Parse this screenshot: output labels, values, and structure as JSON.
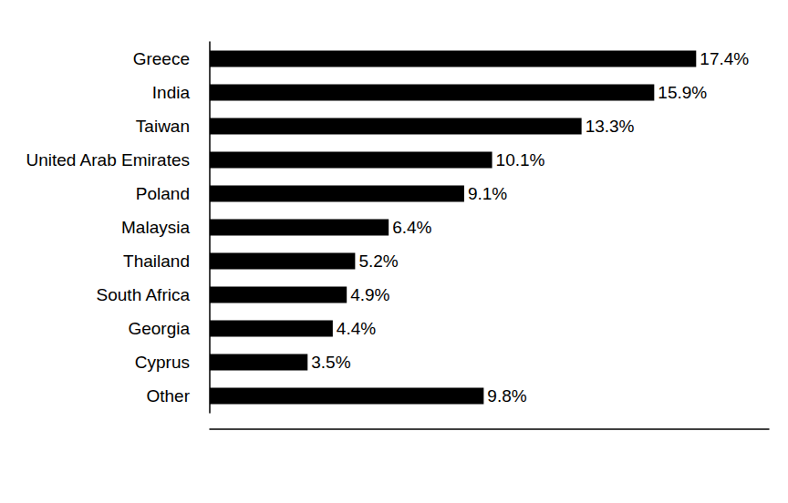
{
  "chart_data": {
    "type": "bar",
    "orientation": "horizontal",
    "categories": [
      "Greece",
      "India",
      "Taiwan",
      "United Arab Emirates",
      "Poland",
      "Malaysia",
      "Thailand",
      "South Africa",
      "Georgia",
      "Cyprus",
      "Other"
    ],
    "values": [
      17.4,
      15.9,
      13.3,
      10.1,
      9.1,
      6.4,
      5.2,
      4.9,
      4.4,
      3.5,
      9.8
    ],
    "value_labels": [
      "17.4%",
      "15.9%",
      "13.3%",
      "10.1%",
      "9.1%",
      "6.4%",
      "5.2%",
      "4.9%",
      "4.4%",
      "3.5%",
      "9.8%"
    ],
    "color": "#000000",
    "xlim": [
      0,
      20
    ],
    "grid": false,
    "data_labels": true,
    "tick_labels": "y"
  }
}
